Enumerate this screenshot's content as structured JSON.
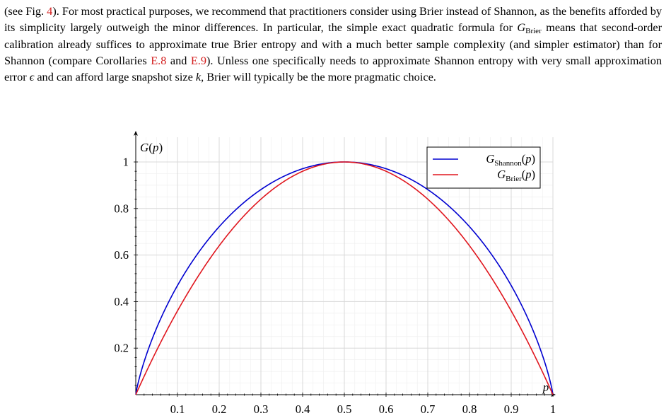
{
  "paragraph": {
    "s1": "(see Fig. ",
    "ref_fig": "4",
    "s2": "). For most practical purposes, we recommend that practitioners consider using Brier instead of Shannon, as the benefits afforded by its simplicity largely outweigh the minor differences. In particular, the simple exact quadratic formula for ",
    "g_symbol": "G",
    "brier_sub": "Brier",
    "s3": " means that second-order calibration already suffices to approximate true Brier entropy and with a much better sample complexity (and simpler estimator) than for Shannon (compare Corollaries ",
    "ref_e8": "E.8",
    "s4": " and ",
    "ref_e9": "E.9",
    "s5": "). Unless one specifically needs to approximate Shannon entropy with very small approximation error ",
    "epsilon": "ϵ",
    "s6": " and can afford large snapshot size ",
    "k": "k",
    "s7": ", Brier will typically be the more pragmatic choice."
  },
  "colors": {
    "link": "#d31f1f",
    "shannon": "#0000d0",
    "brier": "#e0161e",
    "grid": "#d8d8d8",
    "minor_grid": "#efefef"
  },
  "chart_data": {
    "type": "line",
    "ylabel": "G(p)",
    "xlabel": "p",
    "x_ticks": [
      "0.1",
      "0.2",
      "0.3",
      "0.4",
      "0.5",
      "0.6",
      "0.7",
      "0.8",
      "0.9",
      "1"
    ],
    "y_ticks": [
      "0.2",
      "0.4",
      "0.6",
      "0.8",
      "1"
    ],
    "xlim": [
      0,
      1
    ],
    "ylim": [
      0,
      1
    ],
    "grid": true,
    "legend_position": "top-right",
    "series": [
      {
        "name": "G_Shannon(p)",
        "legend_main": "G",
        "legend_sub": "Shannon",
        "legend_suffix": "(p)",
        "formula": "-p*log2(p)-(1-p)*log2(1-p)",
        "color": "#0000d0",
        "x": [
          0,
          0.05,
          0.1,
          0.15,
          0.2,
          0.25,
          0.3,
          0.35,
          0.4,
          0.45,
          0.5,
          0.55,
          0.6,
          0.65,
          0.7,
          0.75,
          0.8,
          0.85,
          0.9,
          0.95,
          1
        ],
        "y": [
          0,
          0.286,
          0.469,
          0.61,
          0.722,
          0.811,
          0.881,
          0.934,
          0.971,
          0.993,
          1,
          0.993,
          0.971,
          0.934,
          0.881,
          0.811,
          0.722,
          0.61,
          0.469,
          0.286,
          0
        ]
      },
      {
        "name": "G_Brier(p)",
        "legend_main": "G",
        "legend_sub": "Brier",
        "legend_suffix": "(p)",
        "formula": "4*p*(1-p)",
        "color": "#e0161e",
        "x": [
          0,
          0.05,
          0.1,
          0.15,
          0.2,
          0.25,
          0.3,
          0.35,
          0.4,
          0.45,
          0.5,
          0.55,
          0.6,
          0.65,
          0.7,
          0.75,
          0.8,
          0.85,
          0.9,
          0.95,
          1
        ],
        "y": [
          0,
          0.19,
          0.36,
          0.51,
          0.64,
          0.75,
          0.84,
          0.91,
          0.96,
          0.99,
          1,
          0.99,
          0.96,
          0.91,
          0.84,
          0.75,
          0.64,
          0.51,
          0.36,
          0.19,
          0
        ]
      }
    ]
  }
}
